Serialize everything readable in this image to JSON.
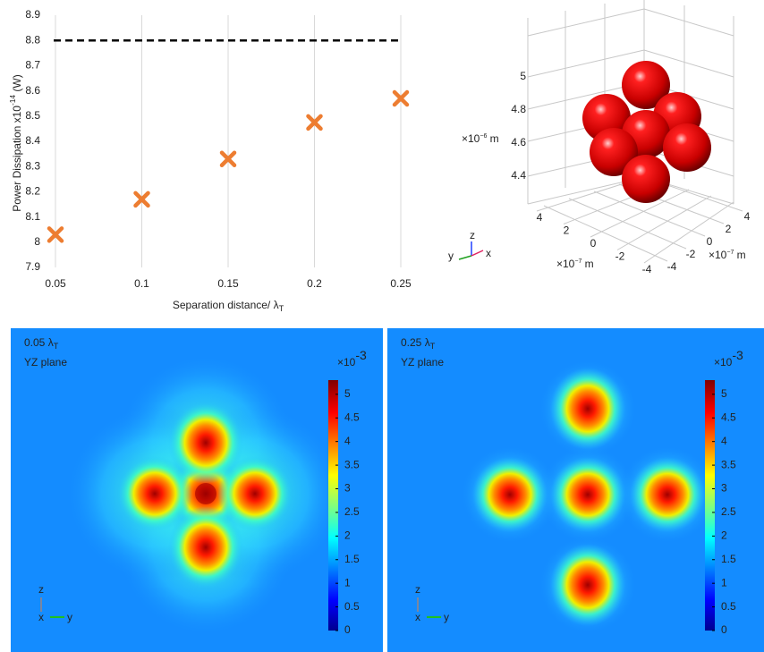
{
  "chart_data": [
    {
      "type": "scatter",
      "x_label": [
        "Separation distance/ λ",
        "T"
      ],
      "y_label": [
        "Power Dissipation x10",
        "-14",
        " (W)"
      ],
      "x": [
        0.05,
        0.1,
        0.15,
        0.2,
        0.25
      ],
      "series": [
        {
          "values": [
            8.03,
            8.17,
            8.33,
            8.475,
            8.57
          ],
          "color": "#ed7d31"
        }
      ],
      "reference_line": 8.8,
      "xlim": [
        0.05,
        0.25
      ],
      "ylim": [
        7.9,
        8.9
      ],
      "xticks": [
        0.05,
        0.1,
        0.15,
        0.2,
        0.25
      ],
      "yticks": [
        7.9,
        8,
        8.1,
        8.2,
        8.3,
        8.4,
        8.5,
        8.6,
        8.7,
        8.8,
        8.9
      ],
      "grid": "x"
    },
    {
      "type": "scatter3d",
      "zticks": [
        5,
        4.8,
        4.6,
        4.4
      ],
      "z_unit": [
        "×10",
        "−6",
        " m"
      ],
      "yticks": [
        4,
        2,
        0,
        -2,
        -4
      ],
      "y_unit": [
        "×10",
        "−7",
        " m"
      ],
      "xticks": [
        4,
        2,
        0,
        -2,
        -4
      ],
      "x_unit": [
        "×10",
        "−7",
        " m"
      ],
      "triad": [
        "y",
        "z",
        "x"
      ],
      "color": "#e00000"
    },
    {
      "type": "heatmap",
      "label": [
        "0.05 λ",
        "T"
      ],
      "plane": "YZ plane",
      "clim": [
        0,
        5.3
      ],
      "cticks": [
        0,
        0.5,
        1,
        1.5,
        2,
        2.5,
        3,
        3.5,
        4,
        4.5,
        5
      ],
      "scale_label": [
        "×10",
        "-3"
      ],
      "triad": [
        "z",
        "x",
        "y"
      ],
      "colormap": "jet"
    },
    {
      "type": "heatmap",
      "label": [
        "0.25 λ",
        "T"
      ],
      "plane": "YZ plane",
      "clim": [
        0,
        5.3
      ],
      "cticks": [
        0,
        0.5,
        1,
        1.5,
        2,
        2.5,
        3,
        3.5,
        4,
        4.5,
        5
      ],
      "scale_label": [
        "×10",
        "-3"
      ],
      "triad": [
        "z",
        "x",
        "y"
      ],
      "colormap": "jet"
    }
  ]
}
